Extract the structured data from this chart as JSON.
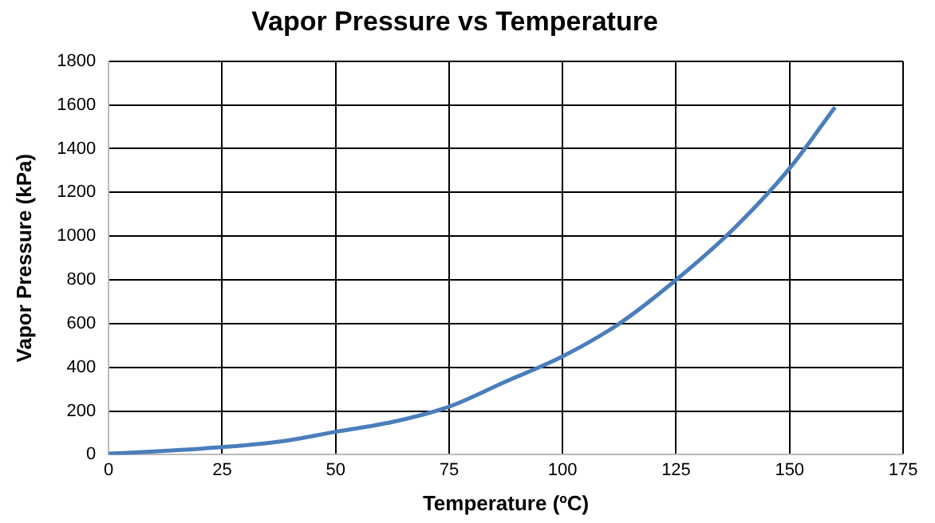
{
  "chart_data": {
    "type": "line",
    "title": "Vapor Pressure vs Temperature",
    "xlabel": "Temperature (ºC)",
    "ylabel": "Vapor Pressure (kPa)",
    "x": [
      0,
      10,
      25,
      37.5,
      50,
      62.5,
      75,
      87.5,
      100,
      112.5,
      125,
      137.5,
      150,
      160
    ],
    "series": [
      {
        "color": "#4a7ebb",
        "values": [
          5,
          15,
          35,
          60,
          105,
          150,
          220,
          335,
          450,
          600,
          800,
          1030,
          1310,
          1590
        ]
      }
    ],
    "xlim": [
      0,
      175
    ],
    "xticks": [
      0,
      25,
      50,
      75,
      100,
      125,
      150,
      175
    ],
    "ylim": [
      0,
      1800
    ],
    "yticks": [
      0,
      200,
      400,
      600,
      800,
      1000,
      1200,
      1400,
      1600,
      1800
    ],
    "grid": true,
    "legend": false,
    "marker": "none",
    "line_style": "solid"
  }
}
